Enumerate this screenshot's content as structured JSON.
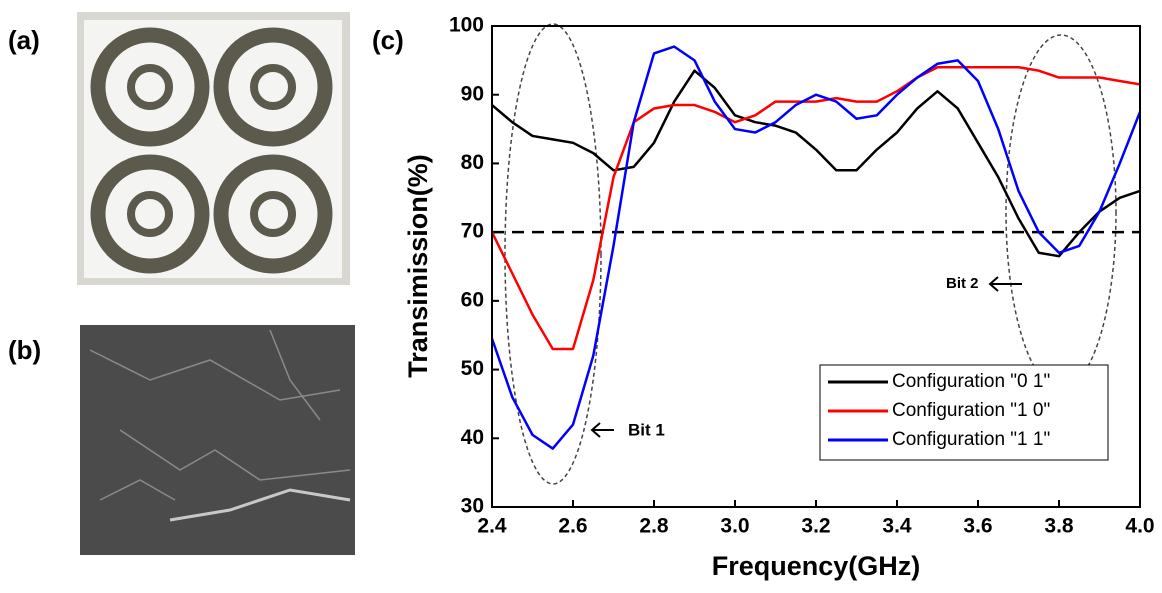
{
  "panels": [
    {
      "label": "(a)"
    },
    {
      "label": "(b)"
    }
  ],
  "chart_data": {
    "type": "line",
    "panel_label": "(c)",
    "x_label": "Frequency(GHz)",
    "y_label": "Transimission(%)",
    "x": [
      2.4,
      2.45,
      2.5,
      2.55,
      2.6,
      2.65,
      2.7,
      2.75,
      2.8,
      2.85,
      2.9,
      2.95,
      3.0,
      3.05,
      3.1,
      3.15,
      3.2,
      3.25,
      3.3,
      3.35,
      3.4,
      3.45,
      3.5,
      3.55,
      3.6,
      3.65,
      3.7,
      3.75,
      3.8,
      3.85,
      3.9,
      3.95,
      4.0
    ],
    "series": [
      {
        "name": "Configuration \"0 1\"",
        "color": "#000000",
        "values": [
          88.5,
          86,
          84,
          83.5,
          83,
          81.5,
          79,
          79.5,
          83,
          89,
          93.5,
          91,
          87,
          86,
          85.5,
          84.5,
          82,
          79,
          79,
          82,
          84.5,
          88,
          90.5,
          88,
          83,
          78,
          72,
          67,
          66.5,
          70,
          73,
          75,
          76
        ]
      },
      {
        "name": "Configuration \"1 0\"",
        "color": "#ff0000",
        "values": [
          70,
          64,
          58,
          53,
          53,
          63,
          78,
          86,
          88,
          88.5,
          88.5,
          87.5,
          86,
          87,
          89,
          89,
          89,
          89.5,
          89,
          89,
          90.5,
          92.5,
          94,
          94,
          94,
          94,
          94,
          93.5,
          92.5,
          92.5,
          92.5,
          92,
          91.5
        ]
      },
      {
        "name": "Configuration \"1 1\"",
        "color": "#0000ff",
        "values": [
          54.5,
          46,
          40.5,
          38.5,
          42,
          52,
          68,
          86,
          96,
          97,
          95,
          89,
          85,
          84.5,
          86,
          88.5,
          90,
          89,
          86.5,
          87,
          90,
          92.5,
          94.5,
          95,
          92,
          85,
          76,
          70,
          67,
          68,
          73,
          80,
          87.5
        ]
      }
    ],
    "reference_line": 70,
    "annotations": [
      "Bit 1",
      "Bit 2"
    ],
    "xlim": [
      2.4,
      4.0
    ],
    "xticks": [
      2.4,
      2.6,
      2.8,
      {
        "value": 3,
        "label": "3.0"
      },
      3.2,
      3.4,
      3.6,
      3.8,
      {
        "value": 4,
        "label": "4.0"
      }
    ],
    "ylim": [
      30,
      100
    ],
    "yticks": [
      30,
      40,
      50,
      60,
      70,
      80,
      90,
      100
    ],
    "legend": "lower right"
  }
}
